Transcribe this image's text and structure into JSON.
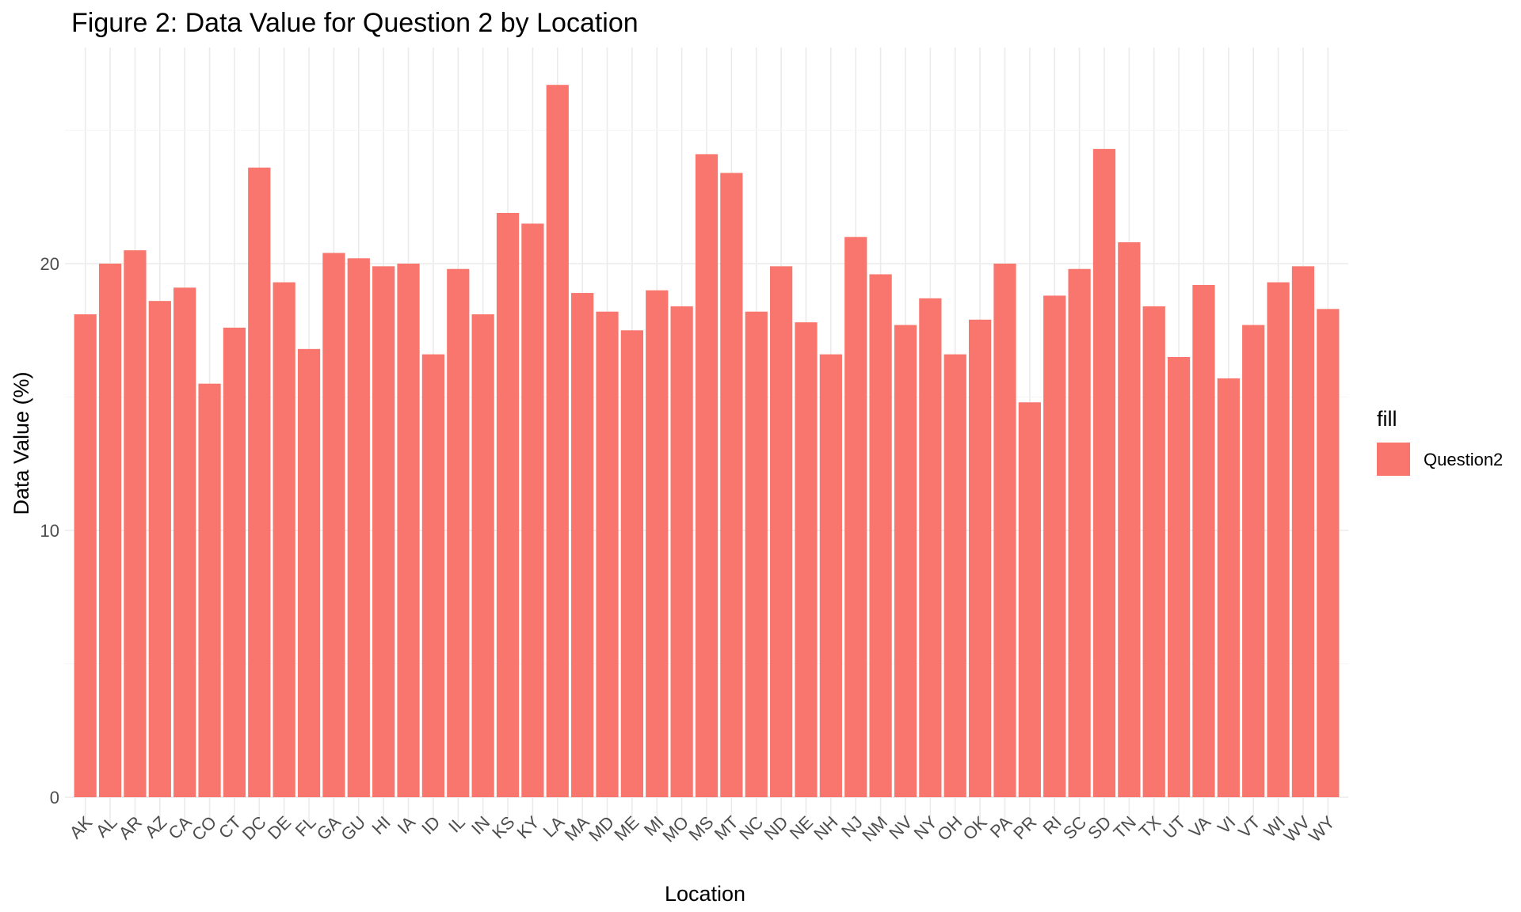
{
  "chart_data": {
    "type": "bar",
    "title": "Figure 2: Data Value for Question 2 by Location",
    "xlabel": "Location",
    "ylabel": "Data Value (%)",
    "ylim": [
      0,
      27.5
    ],
    "yticks": [
      0,
      10,
      20
    ],
    "grid": true,
    "legend": {
      "title": "fill",
      "position": "right",
      "entries": [
        {
          "label": "Question2",
          "color": "#F8766D"
        }
      ]
    },
    "categories": [
      "AK",
      "AL",
      "AR",
      "AZ",
      "CA",
      "CO",
      "CT",
      "DC",
      "DE",
      "FL",
      "GA",
      "GU",
      "HI",
      "IA",
      "ID",
      "IL",
      "IN",
      "KS",
      "KY",
      "LA",
      "MA",
      "MD",
      "ME",
      "MI",
      "MO",
      "MS",
      "MT",
      "NC",
      "ND",
      "NE",
      "NH",
      "NJ",
      "NM",
      "NV",
      "NY",
      "OH",
      "OK",
      "PA",
      "PR",
      "RI",
      "SC",
      "SD",
      "TN",
      "TX",
      "UT",
      "VA",
      "VI",
      "VT",
      "WI",
      "WV",
      "WY"
    ],
    "series": [
      {
        "name": "Question2",
        "color": "#F8766D",
        "values": [
          18.1,
          20.0,
          20.5,
          18.6,
          19.1,
          15.5,
          17.6,
          23.6,
          19.3,
          16.8,
          20.4,
          20.2,
          19.9,
          20.0,
          16.6,
          19.8,
          18.1,
          21.9,
          21.5,
          26.7,
          18.9,
          18.2,
          17.5,
          19.0,
          18.4,
          24.1,
          23.4,
          18.2,
          19.9,
          17.8,
          16.6,
          21.0,
          19.6,
          17.7,
          18.7,
          16.6,
          17.9,
          20.0,
          14.8,
          18.8,
          19.8,
          24.3,
          20.8,
          18.4,
          16.5,
          19.2,
          15.7,
          17.7,
          19.3,
          19.9,
          18.3
        ]
      }
    ]
  }
}
